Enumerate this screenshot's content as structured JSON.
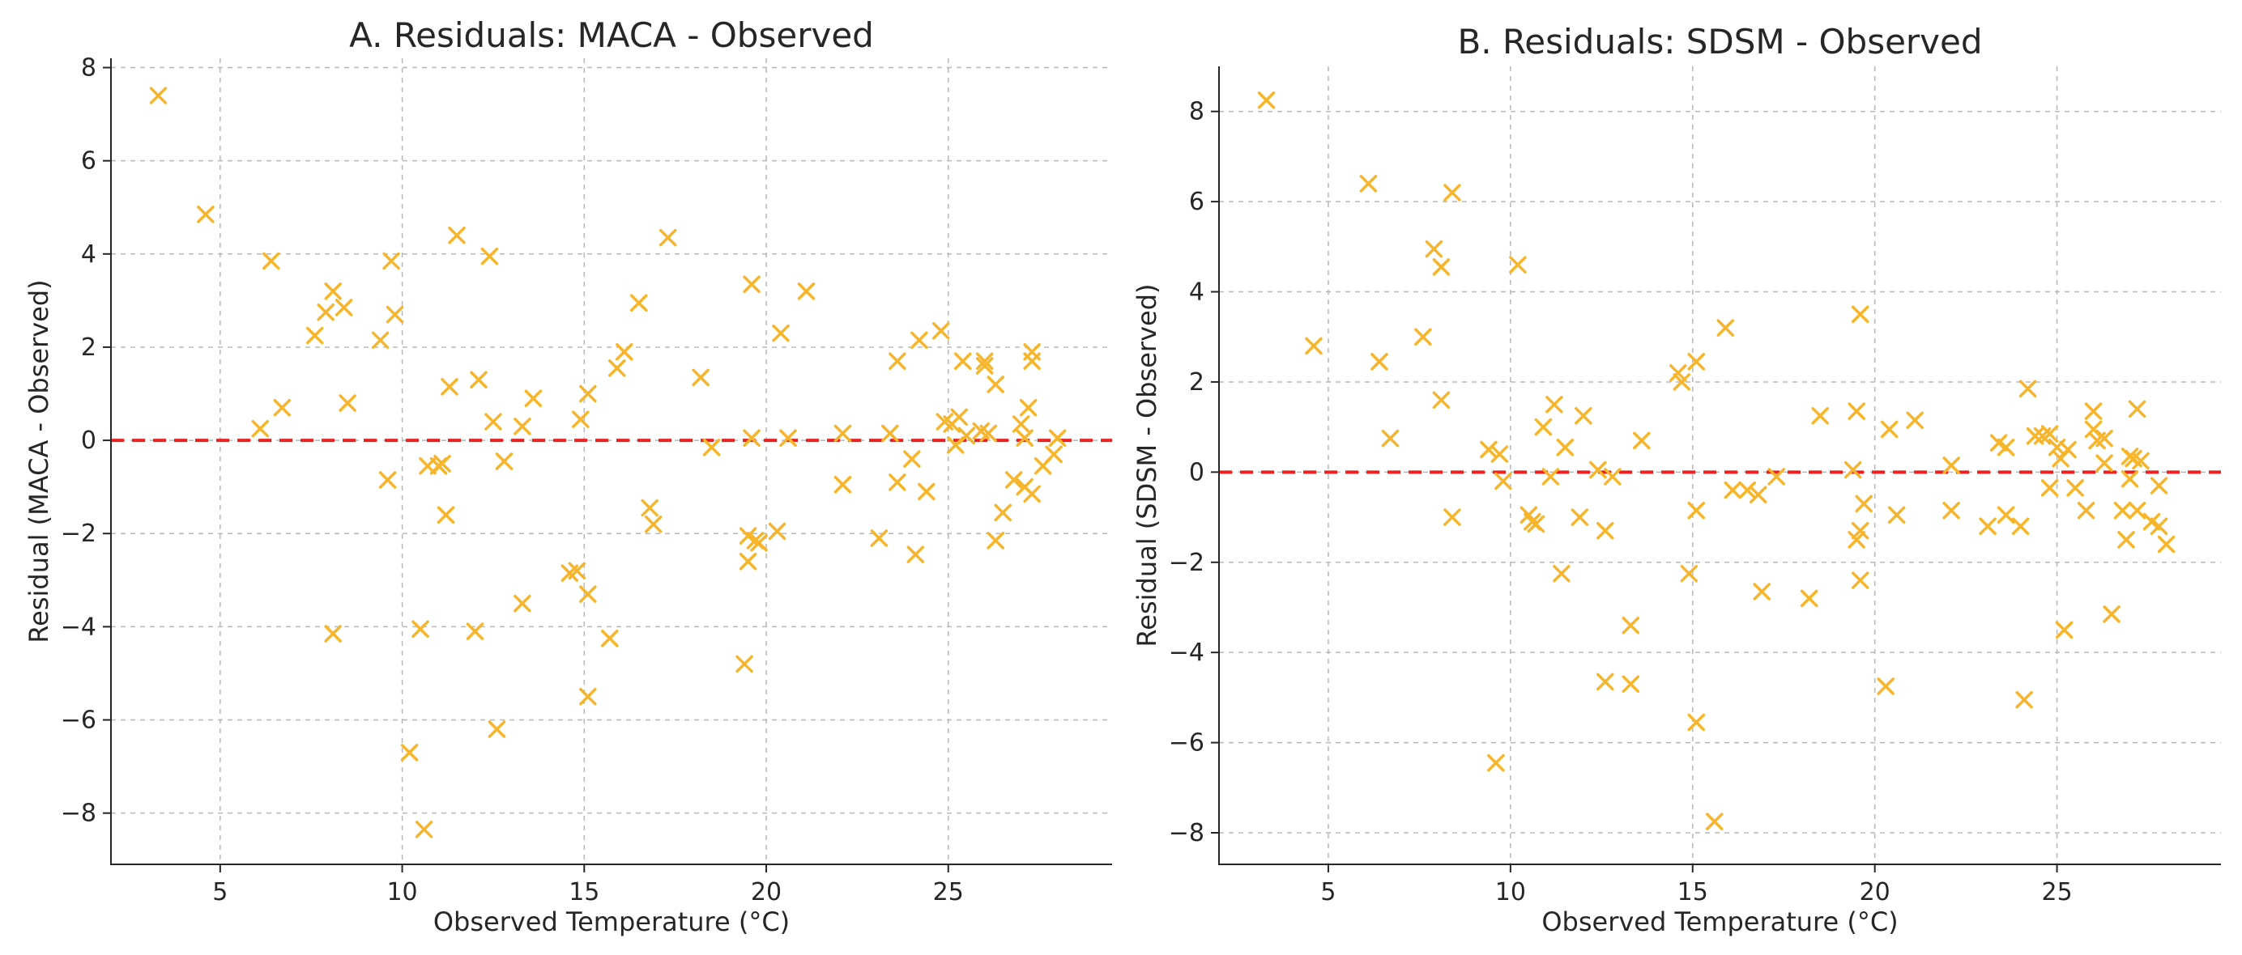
{
  "colors": {
    "marker": "#f7b52c",
    "zero_line": "#ee2020",
    "grid": "#b8b8b8",
    "axis": "#262626"
  },
  "chart_data": [
    {
      "type": "scatter",
      "title": "A. Residuals: MACA - Observed",
      "xlabel": "Observed Temperature (°C)",
      "ylabel": "Residual (MACA - Observed)",
      "xlim": [
        2,
        29.5
      ],
      "ylim": [
        -9.1,
        8.2
      ],
      "xticks": [
        5,
        10,
        15,
        20,
        25
      ],
      "yticks": [
        -8,
        -6,
        -4,
        -2,
        0,
        2,
        4,
        6,
        8
      ],
      "grid": true,
      "reference_line": {
        "y": 0,
        "style": "dashed",
        "color": "red"
      },
      "marker": "x",
      "points": [
        [
          3.3,
          7.4
        ],
        [
          4.6,
          4.85
        ],
        [
          6.1,
          0.25
        ],
        [
          6.4,
          3.85
        ],
        [
          6.7,
          0.7
        ],
        [
          7.6,
          2.25
        ],
        [
          7.9,
          2.75
        ],
        [
          8.1,
          3.2
        ],
        [
          8.1,
          -4.15
        ],
        [
          8.4,
          2.85
        ],
        [
          8.5,
          0.8
        ],
        [
          9.4,
          2.15
        ],
        [
          9.6,
          -0.85
        ],
        [
          9.7,
          3.85
        ],
        [
          9.8,
          2.7
        ],
        [
          10.2,
          -6.7
        ],
        [
          10.5,
          -4.05
        ],
        [
          10.6,
          -8.35
        ],
        [
          10.7,
          -0.55
        ],
        [
          11.0,
          -0.55
        ],
        [
          11.1,
          -0.5
        ],
        [
          11.2,
          -1.6
        ],
        [
          11.3,
          1.15
        ],
        [
          11.5,
          4.4
        ],
        [
          12.0,
          -4.1
        ],
        [
          12.1,
          1.3
        ],
        [
          12.4,
          3.95
        ],
        [
          12.5,
          0.4
        ],
        [
          12.6,
          -6.2
        ],
        [
          12.8,
          -0.45
        ],
        [
          13.3,
          0.3
        ],
        [
          13.3,
          -3.5
        ],
        [
          13.6,
          0.9
        ],
        [
          14.6,
          -2.85
        ],
        [
          14.8,
          -2.8
        ],
        [
          14.9,
          0.45
        ],
        [
          15.1,
          1.0
        ],
        [
          15.1,
          -3.3
        ],
        [
          15.1,
          -5.5
        ],
        [
          15.7,
          -4.25
        ],
        [
          15.9,
          1.55
        ],
        [
          16.1,
          1.9
        ],
        [
          16.5,
          2.95
        ],
        [
          16.8,
          -1.45
        ],
        [
          16.9,
          -1.8
        ],
        [
          17.3,
          4.35
        ],
        [
          18.2,
          1.35
        ],
        [
          18.5,
          -0.15
        ],
        [
          19.4,
          -4.8
        ],
        [
          19.5,
          -2.05
        ],
        [
          19.5,
          -2.6
        ],
        [
          19.6,
          3.35
        ],
        [
          19.6,
          0.05
        ],
        [
          19.7,
          -2.15
        ],
        [
          19.8,
          -2.2
        ],
        [
          20.3,
          -1.95
        ],
        [
          20.4,
          2.3
        ],
        [
          20.6,
          0.05
        ],
        [
          21.1,
          3.2
        ],
        [
          22.1,
          0.15
        ],
        [
          22.1,
          -0.95
        ],
        [
          23.1,
          -2.1
        ],
        [
          23.4,
          0.15
        ],
        [
          23.6,
          1.7
        ],
        [
          23.6,
          -0.9
        ],
        [
          24.0,
          -0.4
        ],
        [
          24.1,
          -2.45
        ],
        [
          24.2,
          2.15
        ],
        [
          24.4,
          -1.1
        ],
        [
          24.8,
          2.35
        ],
        [
          24.9,
          0.4
        ],
        [
          25.1,
          0.35
        ],
        [
          25.2,
          -0.1
        ],
        [
          25.3,
          0.5
        ],
        [
          25.4,
          1.7
        ],
        [
          25.5,
          0.1
        ],
        [
          25.9,
          0.2
        ],
        [
          26.0,
          1.7
        ],
        [
          26.0,
          1.6
        ],
        [
          26.1,
          0.15
        ],
        [
          26.3,
          1.2
        ],
        [
          26.3,
          -2.15
        ],
        [
          26.5,
          -1.55
        ],
        [
          26.8,
          -0.85
        ],
        [
          27.0,
          0.35
        ],
        [
          27.1,
          -1.0
        ],
        [
          27.1,
          0.05
        ],
        [
          27.2,
          0.7
        ],
        [
          27.3,
          1.7
        ],
        [
          27.3,
          1.9
        ],
        [
          27.3,
          -1.15
        ],
        [
          27.6,
          -0.55
        ],
        [
          27.9,
          -0.3
        ],
        [
          28.0,
          0.05
        ]
      ]
    },
    {
      "type": "scatter",
      "title": "B. Residuals: SDSM - Observed",
      "xlabel": "Observed Temperature (°C)",
      "ylabel": "Residual (SDSM - Observed)",
      "xlim": [
        2,
        29.5
      ],
      "ylim": [
        -8.7,
        9.0
      ],
      "xticks": [
        5,
        10,
        15,
        20,
        25
      ],
      "yticks": [
        -8,
        -6,
        -4,
        -2,
        0,
        2,
        4,
        6,
        8
      ],
      "grid": true,
      "reference_line": {
        "y": 0,
        "style": "dashed",
        "color": "red"
      },
      "marker": "x",
      "points": [
        [
          3.3,
          8.25
        ],
        [
          4.6,
          2.8
        ],
        [
          6.1,
          6.4
        ],
        [
          6.4,
          2.45
        ],
        [
          6.7,
          0.75
        ],
        [
          7.6,
          3.0
        ],
        [
          7.9,
          4.95
        ],
        [
          8.1,
          4.55
        ],
        [
          8.1,
          1.6
        ],
        [
          8.4,
          6.2
        ],
        [
          8.4,
          -1.0
        ],
        [
          9.4,
          0.5
        ],
        [
          9.6,
          -6.45
        ],
        [
          9.7,
          0.4
        ],
        [
          9.8,
          -0.2
        ],
        [
          10.2,
          4.6
        ],
        [
          10.5,
          -0.95
        ],
        [
          10.6,
          -1.1
        ],
        [
          10.7,
          -1.15
        ],
        [
          10.9,
          1.0
        ],
        [
          11.1,
          -0.1
        ],
        [
          11.2,
          1.5
        ],
        [
          11.4,
          -2.25
        ],
        [
          11.5,
          0.55
        ],
        [
          11.9,
          -1.0
        ],
        [
          12.0,
          1.25
        ],
        [
          12.4,
          0.05
        ],
        [
          12.6,
          -1.3
        ],
        [
          12.6,
          -4.65
        ],
        [
          12.8,
          -0.1
        ],
        [
          13.3,
          -3.4
        ],
        [
          13.3,
          -4.7
        ],
        [
          13.6,
          0.7
        ],
        [
          14.6,
          2.2
        ],
        [
          14.7,
          2.0
        ],
        [
          14.9,
          -2.25
        ],
        [
          15.1,
          2.45
        ],
        [
          15.1,
          -0.85
        ],
        [
          15.1,
          -5.55
        ],
        [
          15.6,
          -7.75
        ],
        [
          15.9,
          3.2
        ],
        [
          16.1,
          -0.4
        ],
        [
          16.5,
          -0.4
        ],
        [
          16.8,
          -0.5
        ],
        [
          16.9,
          -2.65
        ],
        [
          17.3,
          -0.1
        ],
        [
          18.2,
          -2.8
        ],
        [
          18.5,
          1.25
        ],
        [
          19.4,
          0.05
        ],
        [
          19.5,
          1.35
        ],
        [
          19.5,
          -1.5
        ],
        [
          19.6,
          3.5
        ],
        [
          19.6,
          -2.4
        ],
        [
          19.6,
          -1.3
        ],
        [
          19.7,
          -0.7
        ],
        [
          20.3,
          -4.75
        ],
        [
          20.4,
          0.95
        ],
        [
          20.6,
          -0.95
        ],
        [
          21.1,
          1.15
        ],
        [
          22.1,
          0.15
        ],
        [
          22.1,
          -0.85
        ],
        [
          23.1,
          -1.2
        ],
        [
          23.4,
          0.65
        ],
        [
          23.6,
          0.55
        ],
        [
          23.6,
          -0.95
        ],
        [
          24.0,
          -1.2
        ],
        [
          24.1,
          -5.05
        ],
        [
          24.2,
          1.85
        ],
        [
          24.4,
          0.8
        ],
        [
          24.6,
          0.8
        ],
        [
          24.8,
          0.85
        ],
        [
          24.8,
          -0.35
        ],
        [
          25.0,
          0.55
        ],
        [
          25.1,
          0.3
        ],
        [
          25.2,
          -3.5
        ],
        [
          25.3,
          0.5
        ],
        [
          25.5,
          -0.35
        ],
        [
          25.8,
          -0.85
        ],
        [
          26.0,
          1.35
        ],
        [
          26.0,
          0.95
        ],
        [
          26.1,
          0.7
        ],
        [
          26.3,
          0.2
        ],
        [
          26.3,
          0.75
        ],
        [
          26.5,
          -3.15
        ],
        [
          26.8,
          -0.85
        ],
        [
          26.9,
          -1.5
        ],
        [
          27.0,
          0.35
        ],
        [
          27.0,
          -0.15
        ],
        [
          27.1,
          0.3
        ],
        [
          27.2,
          1.4
        ],
        [
          27.2,
          -0.85
        ],
        [
          27.3,
          0.25
        ],
        [
          27.6,
          -1.1
        ],
        [
          27.8,
          -0.3
        ],
        [
          27.8,
          -1.2
        ],
        [
          28.0,
          -1.6
        ]
      ]
    }
  ]
}
